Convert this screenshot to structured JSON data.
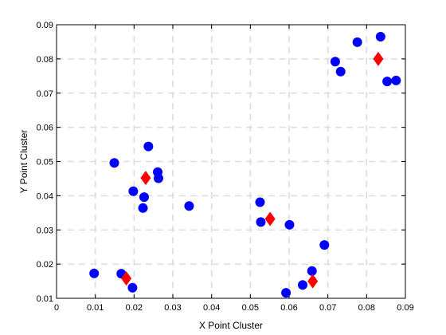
{
  "chart_data": {
    "type": "scatter",
    "xlabel": "X Point Cluster",
    "ylabel": "Y Point Cluster",
    "xlim": [
      0,
      0.09
    ],
    "ylim": [
      0.01,
      0.09
    ],
    "xticks": [
      "0",
      "0.01",
      "0.02",
      "0.03",
      "0.04",
      "0.05",
      "0.06",
      "0.07",
      "0.08",
      "0.09"
    ],
    "yticks": [
      "0.01",
      "0.02",
      "0.03",
      "0.04",
      "0.05",
      "0.06",
      "0.07",
      "0.08",
      "0.09"
    ],
    "grid": true,
    "grid_style": "dashed",
    "series": [
      {
        "marker": "circle",
        "color": "#0000ff",
        "points": [
          [
            0.0097,
            0.0173
          ],
          [
            0.0167,
            0.0172
          ],
          [
            0.0196,
            0.0131
          ],
          [
            0.0149,
            0.0496
          ],
          [
            0.0198,
            0.0413
          ],
          [
            0.0223,
            0.0364
          ],
          [
            0.0226,
            0.0396
          ],
          [
            0.0237,
            0.0544
          ],
          [
            0.0261,
            0.0469
          ],
          [
            0.0263,
            0.0451
          ],
          [
            0.0342,
            0.037
          ],
          [
            0.0525,
            0.0381
          ],
          [
            0.0527,
            0.0323
          ],
          [
            0.0601,
            0.0315
          ],
          [
            0.0592,
            0.0116
          ],
          [
            0.0635,
            0.0139
          ],
          [
            0.0659,
            0.018
          ],
          [
            0.0691,
            0.0256
          ],
          [
            0.0719,
            0.0792
          ],
          [
            0.0733,
            0.0763
          ],
          [
            0.0776,
            0.0849
          ],
          [
            0.0836,
            0.0865
          ],
          [
            0.0853,
            0.0734
          ],
          [
            0.0876,
            0.0737
          ]
        ]
      },
      {
        "marker": "diamond",
        "color": "#ff0000",
        "points": [
          [
            0.018,
            0.0158
          ],
          [
            0.023,
            0.0452
          ],
          [
            0.0551,
            0.0332
          ],
          [
            0.0661,
            0.015
          ],
          [
            0.083,
            0.08
          ]
        ]
      }
    ]
  }
}
